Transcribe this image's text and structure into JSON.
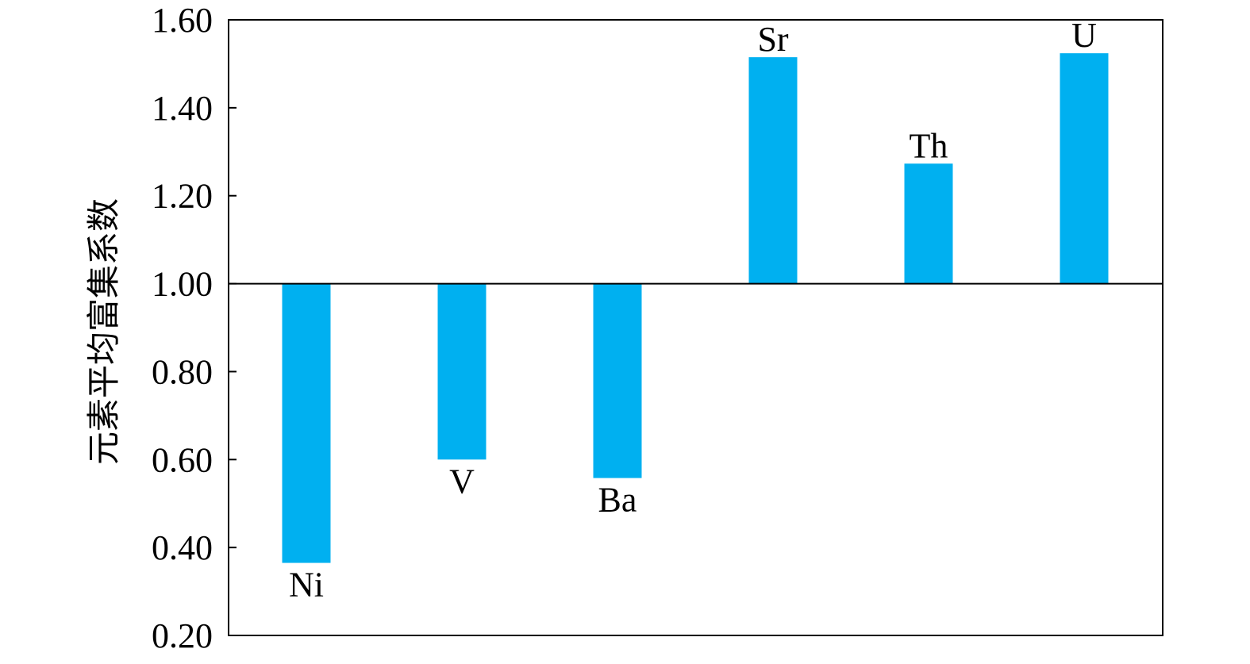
{
  "chart_data": {
    "type": "bar",
    "ylabel": "元素平均富集系数",
    "xlabel": "",
    "title": "",
    "ylim": [
      0.2,
      1.6
    ],
    "baseline": 1.0,
    "yticks": [
      "1.60",
      "1.40",
      "1.20",
      "1.00",
      "0.80",
      "0.60",
      "0.40",
      "0.20"
    ],
    "categories": [
      "Ni",
      "V",
      "Ba",
      "Sr",
      "Th",
      "U"
    ],
    "values": [
      0.365,
      0.6,
      0.558,
      1.515,
      1.273,
      1.524
    ],
    "bar_color": "#00B0F0",
    "grid": false,
    "legend": "none"
  }
}
